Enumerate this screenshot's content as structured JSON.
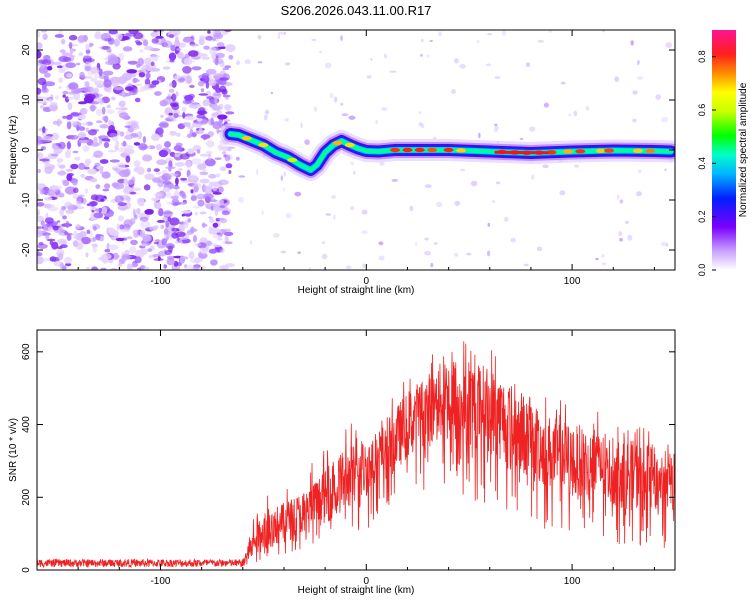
{
  "figure_title": "S206.2026.043.11.00.R17",
  "colors": {
    "snr_line": "#ee2222",
    "axis": "#000000",
    "background": "#ffffff"
  },
  "chart_data": [
    {
      "type": "heatmap",
      "xlabel": "Height of straight line (km)",
      "ylabel": "Frequency (Hz)",
      "xlim": [
        -160,
        150
      ],
      "ylim": [
        -24,
        24
      ],
      "xticks": [
        -100,
        0,
        100
      ],
      "yticks": [
        -20,
        -10,
        0,
        10,
        20
      ],
      "colorbar": {
        "label": "Normalized spectral amplitude",
        "range": [
          0.0,
          0.9
        ],
        "ticks": [
          0.0,
          0.2,
          0.4,
          0.6,
          0.8
        ],
        "colormap": "rainbow"
      },
      "noise_region_x": [
        -160,
        -66
      ],
      "ridge": {
        "x": [
          -66,
          -62,
          -56,
          -50,
          -44,
          -38,
          -32,
          -27,
          -24,
          -20,
          -16,
          -12,
          -8,
          -4,
          0,
          6,
          14,
          24,
          40,
          60,
          80,
          100,
          120,
          140,
          148
        ],
        "y": [
          3.2,
          3.0,
          2.0,
          1.0,
          -0.5,
          -1.5,
          -3.0,
          -4.0,
          -3.0,
          -0.5,
          1.0,
          1.8,
          1.0,
          0.3,
          -0.2,
          -0.3,
          0.0,
          0.0,
          0.0,
          -0.3,
          -0.6,
          -0.3,
          -0.1,
          -0.2,
          -0.3
        ]
      }
    },
    {
      "type": "line",
      "xlabel": "Height of straight line (km)",
      "ylabel": "SNR (10 * v/v)",
      "xlim": [
        -160,
        150
      ],
      "ylim": [
        0,
        660
      ],
      "xticks": [
        -100,
        0,
        100
      ],
      "yticks": [
        0,
        200,
        400,
        600
      ],
      "series": [
        {
          "envelope_x": [
            -160,
            -60,
            -57,
            -50,
            -40,
            -30,
            -20,
            -10,
            0,
            10,
            20,
            30,
            40,
            50,
            60,
            70,
            80,
            90,
            100,
            110,
            120,
            130,
            140,
            150
          ],
          "envelope_max": [
            30,
            30,
            150,
            220,
            240,
            280,
            340,
            410,
            400,
            450,
            540,
            590,
            650,
            630,
            620,
            580,
            520,
            470,
            470,
            450,
            420,
            410,
            380,
            350
          ],
          "envelope_min": [
            5,
            5,
            10,
            20,
            40,
            60,
            80,
            90,
            110,
            150,
            200,
            220,
            210,
            190,
            180,
            150,
            120,
            100,
            90,
            80,
            70,
            60,
            60,
            60
          ],
          "typical": [
            14,
            14,
            60,
            110,
            130,
            160,
            200,
            250,
            280,
            330,
            400,
            440,
            470,
            460,
            440,
            400,
            360,
            320,
            300,
            290,
            270,
            260,
            250,
            240
          ]
        }
      ]
    }
  ]
}
